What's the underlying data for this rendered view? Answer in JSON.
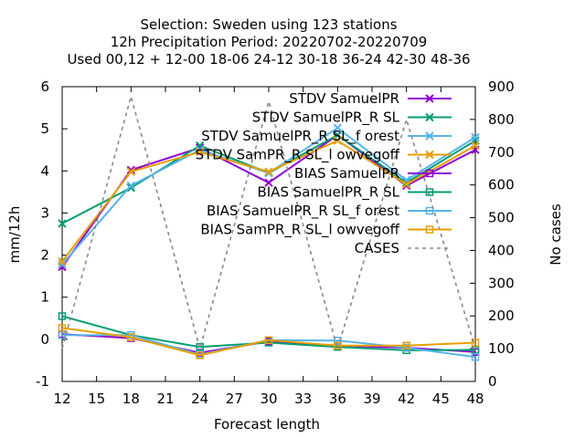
{
  "chart_data": {
    "type": "line",
    "title_lines": [
      "Selection: Sweden using    123 stations",
      "12h Precipitation    Period: 20220702-20220709",
      "Used  00,12  + 12-00  18-06  24-12  30-18  36-24  42-30  48-36"
    ],
    "xlabel": "Forecast length",
    "ylabel": "mm/12h",
    "y2label": "No cases",
    "xlim": [
      12,
      48
    ],
    "ylim": [
      -1,
      6
    ],
    "y2lim": [
      0,
      900
    ],
    "xticks": [
      12,
      15,
      18,
      21,
      24,
      27,
      30,
      33,
      36,
      39,
      42,
      45,
      48
    ],
    "yticks": [
      -1,
      0,
      1,
      2,
      3,
      4,
      5,
      6
    ],
    "y2ticks": [
      0,
      100,
      200,
      300,
      400,
      500,
      600,
      700,
      800,
      900
    ],
    "legend_position": "top-right",
    "grid": false,
    "x": [
      12,
      18,
      24,
      30,
      36,
      42,
      48
    ],
    "series": [
      {
        "name": "STDV SamuelPR",
        "color": "#9400d3",
        "marker": "x",
        "values": [
          1.72,
          4.02,
          4.55,
          3.72,
          4.85,
          3.65,
          4.5
        ]
      },
      {
        "name": "STDV SamuelPR_R SL",
        "color": "#009e73",
        "marker": "x",
        "values": [
          2.75,
          3.6,
          4.6,
          3.95,
          4.85,
          3.72,
          4.72
        ]
      },
      {
        "name": "STDV SamuelPR_R SL_f orest",
        "color": "#56b4e9",
        "marker": "x",
        "values": [
          1.78,
          3.65,
          4.5,
          3.95,
          5.02,
          3.78,
          4.8
        ]
      },
      {
        "name": "STDV SamPR_R SL_l owvegoff",
        "color": "#e69f00",
        "marker": "x",
        "values": [
          1.85,
          3.98,
          4.45,
          3.98,
          4.72,
          3.68,
          4.6
        ]
      },
      {
        "name": "BIAS SamuelPR",
        "color": "#9400d3",
        "marker": "square",
        "values": [
          0.12,
          0.03,
          -0.32,
          -0.05,
          -0.15,
          -0.2,
          -0.3
        ]
      },
      {
        "name": "BIAS SamuelPR_R SL",
        "color": "#009e73",
        "marker": "square",
        "values": [
          0.55,
          0.1,
          -0.18,
          -0.08,
          -0.18,
          -0.26,
          -0.25
        ]
      },
      {
        "name": "BIAS SamuelPR_R SL_f orest",
        "color": "#56b4e9",
        "marker": "square",
        "values": [
          0.1,
          0.1,
          -0.36,
          -0.02,
          -0.03,
          -0.2,
          -0.42
        ]
      },
      {
        "name": "BIAS SamPR_R SL_l owvegoff",
        "color": "#e69f00",
        "marker": "square",
        "values": [
          0.27,
          0.05,
          -0.38,
          -0.02,
          -0.15,
          -0.15,
          -0.08
        ]
      },
      {
        "name": "CASES",
        "color": "#888888",
        "marker": "none",
        "dashed": true,
        "axis": "y2",
        "values": [
          100,
          870,
          100,
          855,
          100,
          800,
          100
        ]
      }
    ]
  }
}
